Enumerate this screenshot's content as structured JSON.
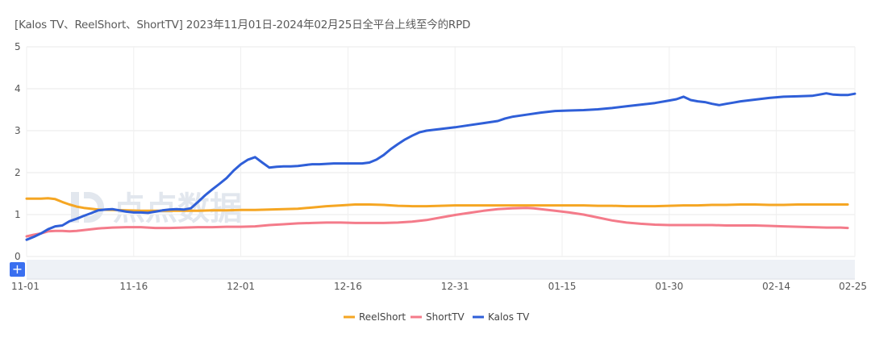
{
  "chart_data": {
    "type": "line",
    "title": "[Kalos TV、ReelShort、ShortTV]  2023年11月01日-2024年02月25日全平台上线至今的RPD",
    "xlabel": "",
    "ylabel": "",
    "ylim": [
      0,
      5
    ],
    "yticks": [
      "0",
      "1",
      "2",
      "3",
      "4",
      "5"
    ],
    "x_tick_labels": [
      "11-01",
      "11-16",
      "12-01",
      "12-16",
      "12-31",
      "01-15",
      "01-30",
      "02-14",
      "02-25"
    ],
    "x_tick_days": [
      0,
      15,
      30,
      45,
      60,
      75,
      90,
      105,
      116
    ],
    "legend_position": "bottom-center",
    "watermark": "点点数据",
    "zoom_button": "+",
    "series": [
      {
        "name": "ReelShort",
        "color": "#f5a623",
        "points": [
          [
            0,
            1.38
          ],
          [
            2,
            1.38
          ],
          [
            3,
            1.39
          ],
          [
            4,
            1.37
          ],
          [
            5,
            1.3
          ],
          [
            6,
            1.24
          ],
          [
            7,
            1.19
          ],
          [
            8,
            1.16
          ],
          [
            9,
            1.14
          ],
          [
            10,
            1.12
          ],
          [
            12,
            1.11
          ],
          [
            14,
            1.1
          ],
          [
            16,
            1.09
          ],
          [
            18,
            1.09
          ],
          [
            20,
            1.09
          ],
          [
            22,
            1.09
          ],
          [
            24,
            1.09
          ],
          [
            26,
            1.1
          ],
          [
            28,
            1.1
          ],
          [
            30,
            1.11
          ],
          [
            32,
            1.11
          ],
          [
            34,
            1.12
          ],
          [
            36,
            1.13
          ],
          [
            38,
            1.14
          ],
          [
            40,
            1.17
          ],
          [
            42,
            1.2
          ],
          [
            44,
            1.22
          ],
          [
            46,
            1.24
          ],
          [
            48,
            1.24
          ],
          [
            50,
            1.23
          ],
          [
            52,
            1.21
          ],
          [
            54,
            1.2
          ],
          [
            56,
            1.2
          ],
          [
            58,
            1.21
          ],
          [
            60,
            1.22
          ],
          [
            62,
            1.22
          ],
          [
            64,
            1.22
          ],
          [
            66,
            1.22
          ],
          [
            68,
            1.22
          ],
          [
            70,
            1.22
          ],
          [
            72,
            1.22
          ],
          [
            74,
            1.22
          ],
          [
            76,
            1.22
          ],
          [
            78,
            1.22
          ],
          [
            80,
            1.21
          ],
          [
            82,
            1.21
          ],
          [
            84,
            1.2
          ],
          [
            86,
            1.2
          ],
          [
            88,
            1.2
          ],
          [
            90,
            1.21
          ],
          [
            92,
            1.22
          ],
          [
            94,
            1.22
          ],
          [
            96,
            1.23
          ],
          [
            98,
            1.23
          ],
          [
            100,
            1.24
          ],
          [
            102,
            1.24
          ],
          [
            104,
            1.23
          ],
          [
            106,
            1.23
          ],
          [
            108,
            1.24
          ],
          [
            110,
            1.24
          ],
          [
            112,
            1.24
          ],
          [
            114,
            1.24
          ],
          [
            115,
            1.24
          ]
        ]
      },
      {
        "name": "ShortTV",
        "color": "#f47b8a",
        "points": [
          [
            0,
            0.48
          ],
          [
            1,
            0.52
          ],
          [
            2,
            0.55
          ],
          [
            3,
            0.6
          ],
          [
            4,
            0.61
          ],
          [
            5,
            0.61
          ],
          [
            6,
            0.6
          ],
          [
            7,
            0.61
          ],
          [
            8,
            0.63
          ],
          [
            9,
            0.65
          ],
          [
            10,
            0.67
          ],
          [
            12,
            0.69
          ],
          [
            14,
            0.7
          ],
          [
            16,
            0.7
          ],
          [
            18,
            0.68
          ],
          [
            20,
            0.68
          ],
          [
            22,
            0.69
          ],
          [
            24,
            0.7
          ],
          [
            26,
            0.7
          ],
          [
            28,
            0.71
          ],
          [
            30,
            0.71
          ],
          [
            32,
            0.72
          ],
          [
            34,
            0.75
          ],
          [
            36,
            0.77
          ],
          [
            38,
            0.79
          ],
          [
            40,
            0.8
          ],
          [
            42,
            0.81
          ],
          [
            44,
            0.81
          ],
          [
            46,
            0.8
          ],
          [
            48,
            0.8
          ],
          [
            50,
            0.8
          ],
          [
            52,
            0.81
          ],
          [
            54,
            0.83
          ],
          [
            56,
            0.87
          ],
          [
            58,
            0.93
          ],
          [
            60,
            0.99
          ],
          [
            62,
            1.04
          ],
          [
            64,
            1.09
          ],
          [
            66,
            1.13
          ],
          [
            68,
            1.15
          ],
          [
            70,
            1.16
          ],
          [
            71,
            1.15
          ],
          [
            72,
            1.13
          ],
          [
            74,
            1.09
          ],
          [
            76,
            1.05
          ],
          [
            78,
            1.0
          ],
          [
            80,
            0.93
          ],
          [
            82,
            0.86
          ],
          [
            84,
            0.81
          ],
          [
            86,
            0.78
          ],
          [
            88,
            0.76
          ],
          [
            90,
            0.75
          ],
          [
            92,
            0.75
          ],
          [
            94,
            0.75
          ],
          [
            96,
            0.75
          ],
          [
            98,
            0.74
          ],
          [
            100,
            0.74
          ],
          [
            102,
            0.74
          ],
          [
            104,
            0.73
          ],
          [
            106,
            0.72
          ],
          [
            108,
            0.71
          ],
          [
            110,
            0.7
          ],
          [
            112,
            0.69
          ],
          [
            114,
            0.69
          ],
          [
            115,
            0.68
          ]
        ]
      },
      {
        "name": "Kalos TV",
        "color": "#2f5fd8",
        "points": [
          [
            0,
            0.4
          ],
          [
            1,
            0.47
          ],
          [
            2,
            0.55
          ],
          [
            3,
            0.65
          ],
          [
            4,
            0.72
          ],
          [
            5,
            0.74
          ],
          [
            6,
            0.84
          ],
          [
            7,
            0.9
          ],
          [
            8,
            0.97
          ],
          [
            9,
            1.03
          ],
          [
            10,
            1.1
          ],
          [
            11,
            1.12
          ],
          [
            12,
            1.13
          ],
          [
            13,
            1.1
          ],
          [
            14,
            1.07
          ],
          [
            15,
            1.05
          ],
          [
            16,
            1.05
          ],
          [
            17,
            1.04
          ],
          [
            18,
            1.07
          ],
          [
            19,
            1.1
          ],
          [
            20,
            1.12
          ],
          [
            21,
            1.13
          ],
          [
            22,
            1.12
          ],
          [
            23,
            1.15
          ],
          [
            24,
            1.3
          ],
          [
            25,
            1.46
          ],
          [
            26,
            1.6
          ],
          [
            27,
            1.73
          ],
          [
            28,
            1.87
          ],
          [
            29,
            2.05
          ],
          [
            30,
            2.2
          ],
          [
            31,
            2.31
          ],
          [
            32,
            2.37
          ],
          [
            33,
            2.24
          ],
          [
            34,
            2.12
          ],
          [
            35,
            2.14
          ],
          [
            36,
            2.15
          ],
          [
            37,
            2.15
          ],
          [
            38,
            2.16
          ],
          [
            39,
            2.18
          ],
          [
            40,
            2.2
          ],
          [
            41,
            2.2
          ],
          [
            42,
            2.21
          ],
          [
            43,
            2.22
          ],
          [
            44,
            2.22
          ],
          [
            45,
            2.22
          ],
          [
            46,
            2.22
          ],
          [
            47,
            2.22
          ],
          [
            48,
            2.24
          ],
          [
            49,
            2.31
          ],
          [
            50,
            2.42
          ],
          [
            51,
            2.56
          ],
          [
            52,
            2.68
          ],
          [
            53,
            2.79
          ],
          [
            54,
            2.88
          ],
          [
            55,
            2.96
          ],
          [
            56,
            3.0
          ],
          [
            58,
            3.04
          ],
          [
            60,
            3.08
          ],
          [
            62,
            3.13
          ],
          [
            64,
            3.18
          ],
          [
            66,
            3.23
          ],
          [
            67,
            3.29
          ],
          [
            68,
            3.33
          ],
          [
            70,
            3.38
          ],
          [
            72,
            3.43
          ],
          [
            74,
            3.47
          ],
          [
            76,
            3.48
          ],
          [
            78,
            3.49
          ],
          [
            80,
            3.51
          ],
          [
            82,
            3.54
          ],
          [
            84,
            3.58
          ],
          [
            86,
            3.62
          ],
          [
            88,
            3.66
          ],
          [
            90,
            3.72
          ],
          [
            91,
            3.75
          ],
          [
            92,
            3.81
          ],
          [
            93,
            3.73
          ],
          [
            94,
            3.7
          ],
          [
            95,
            3.68
          ],
          [
            96,
            3.64
          ],
          [
            97,
            3.61
          ],
          [
            98,
            3.64
          ],
          [
            99,
            3.67
          ],
          [
            100,
            3.7
          ],
          [
            102,
            3.74
          ],
          [
            104,
            3.78
          ],
          [
            106,
            3.81
          ],
          [
            108,
            3.82
          ],
          [
            110,
            3.83
          ],
          [
            111,
            3.86
          ],
          [
            112,
            3.89
          ],
          [
            113,
            3.86
          ],
          [
            114,
            3.85
          ],
          [
            115,
            3.85
          ],
          [
            116,
            3.88
          ]
        ]
      }
    ]
  }
}
